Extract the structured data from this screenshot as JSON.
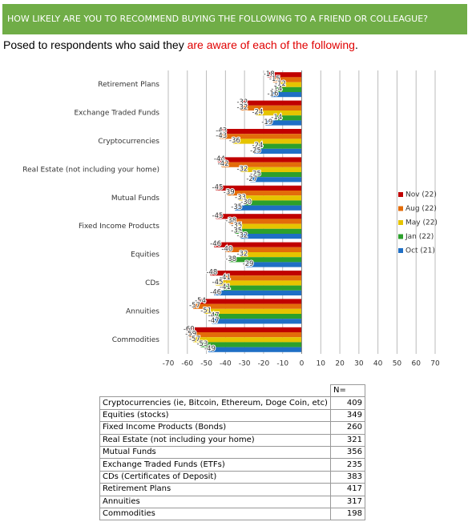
{
  "header": {
    "title": "HOW LIKELY ARE YOU TO RECOMMEND BUYING THE FOLLOWING TO A FRIEND OR COLLEAGUE?",
    "subtitle": {
      "before": "Posed to respondents who said they ",
      "highlight": "are aware of each of the following",
      "after": "."
    }
  },
  "chart_data": {
    "type": "hbar",
    "categories": [
      "Retirement Plans",
      "Exchange Traded Funds",
      "Cryptocurrencies",
      "Real Estate (not including your home)",
      "Mutual Funds",
      "Fixed Income Products",
      "Equities",
      "CDs",
      "Annuities",
      "Commodities"
    ],
    "series": [
      {
        "name": "Nov (22)",
        "color": "#c00000",
        "values": [
          -18,
          -32,
          -43,
          -44,
          -45,
          -45,
          -46,
          -48,
          -54,
          -60
        ]
      },
      {
        "name": "Aug (22)",
        "color": "#e36c0a",
        "values": [
          -15,
          -32,
          -43,
          -42,
          -39,
          -38,
          -40,
          -41,
          -57,
          -59
        ]
      },
      {
        "name": "May (22)",
        "color": "#e6c400",
        "values": [
          -12,
          -24,
          -36,
          -32,
          -33,
          -35,
          -32,
          -45,
          -51,
          -57
        ]
      },
      {
        "name": "Jan (22)",
        "color": "#2ca02c",
        "values": [
          -14,
          -14,
          -24,
          -25,
          -30,
          -35,
          -38,
          -41,
          -47,
          -53
        ]
      },
      {
        "name": "Oct (21)",
        "color": "#1f6fc5",
        "values": [
          -16,
          -19,
          -25,
          -27,
          -35,
          -32,
          -29,
          -46,
          -47,
          -49
        ]
      }
    ],
    "xlim": [
      -70,
      70
    ],
    "xticks": [
      -70,
      -60,
      -50,
      -40,
      -30,
      -20,
      -10,
      0,
      10,
      20,
      30,
      40,
      50,
      60,
      70
    ],
    "grid": true,
    "legend": "right"
  },
  "table": {
    "n_header": "N=",
    "rows": [
      [
        "Cryptocurrencies (ie, Bitcoin, Ethereum, Doge Coin, etc)",
        409
      ],
      [
        "Equities (stocks)",
        349
      ],
      [
        "Fixed Income Products (Bonds)",
        260
      ],
      [
        "Real Estate (not including your home)",
        321
      ],
      [
        "Mutual Funds",
        356
      ],
      [
        "Exchange Traded Funds (ETFs)",
        235
      ],
      [
        "CDs (Certificates of Deposit)",
        383
      ],
      [
        "Retirement Plans",
        417
      ],
      [
        "Annuities",
        317
      ],
      [
        "Commodities",
        198
      ]
    ]
  }
}
